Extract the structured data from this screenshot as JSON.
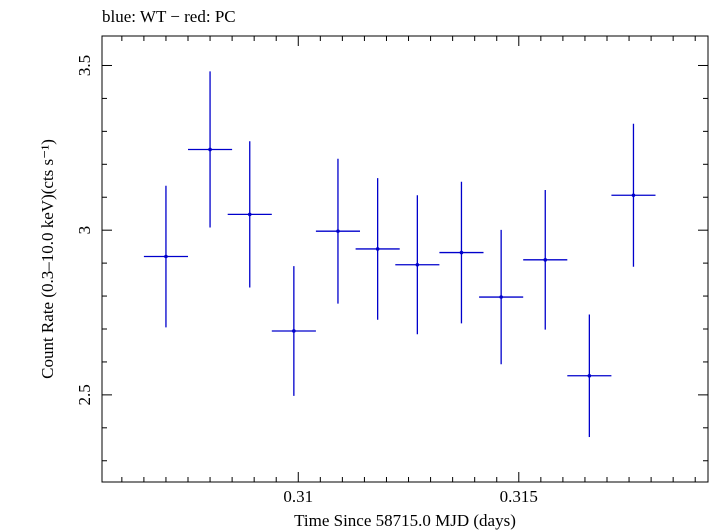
{
  "chart_data": {
    "type": "scatter",
    "title": "blue: WT − red: PC",
    "xlabel": "Time Since 58715.0 MJD (days)",
    "ylabel": "Count Rate (0.3–10.0 keV)(cts s⁻¹)",
    "xlim": [
      0.30555,
      0.31929
    ],
    "ylim": [
      2.2355,
      3.5895
    ],
    "x_ticks": [
      {
        "value": 0.31,
        "label": "0.31"
      },
      {
        "value": 0.315,
        "label": "0.315"
      }
    ],
    "y_ticks": [
      {
        "value": 2.5,
        "label": "2.5"
      },
      {
        "value": 3,
        "label": "3"
      },
      {
        "value": 3.5,
        "label": "3.5"
      }
    ],
    "x_minor_step": 0.0005,
    "y_minor_step": 0.1,
    "grid": false,
    "series": [
      {
        "color": "#0000cc",
        "points": [
          {
            "x": 0.307,
            "x_err": 0.0005,
            "y": 2.92,
            "y_err": 0.215
          },
          {
            "x": 0.308,
            "x_err": 0.0005,
            "y": 3.245,
            "y_err": 0.237
          },
          {
            "x": 0.3089,
            "x_err": 0.0005,
            "y": 3.048,
            "y_err": 0.222
          },
          {
            "x": 0.3099,
            "x_err": 0.0005,
            "y": 2.694,
            "y_err": 0.197
          },
          {
            "x": 0.3109,
            "x_err": 0.0005,
            "y": 2.997,
            "y_err": 0.22
          },
          {
            "x": 0.3118,
            "x_err": 0.0005,
            "y": 2.943,
            "y_err": 0.215
          },
          {
            "x": 0.3127,
            "x_err": 0.0005,
            "y": 2.895,
            "y_err": 0.211
          },
          {
            "x": 0.3137,
            "x_err": 0.0005,
            "y": 2.932,
            "y_err": 0.215
          },
          {
            "x": 0.3146,
            "x_err": 0.0005,
            "y": 2.797,
            "y_err": 0.204
          },
          {
            "x": 0.3156,
            "x_err": 0.0005,
            "y": 2.91,
            "y_err": 0.212
          },
          {
            "x": 0.3166,
            "x_err": 0.0005,
            "y": 2.558,
            "y_err": 0.186
          },
          {
            "x": 0.3176,
            "x_err": 0.0005,
            "y": 3.106,
            "y_err": 0.217
          }
        ]
      }
    ]
  }
}
